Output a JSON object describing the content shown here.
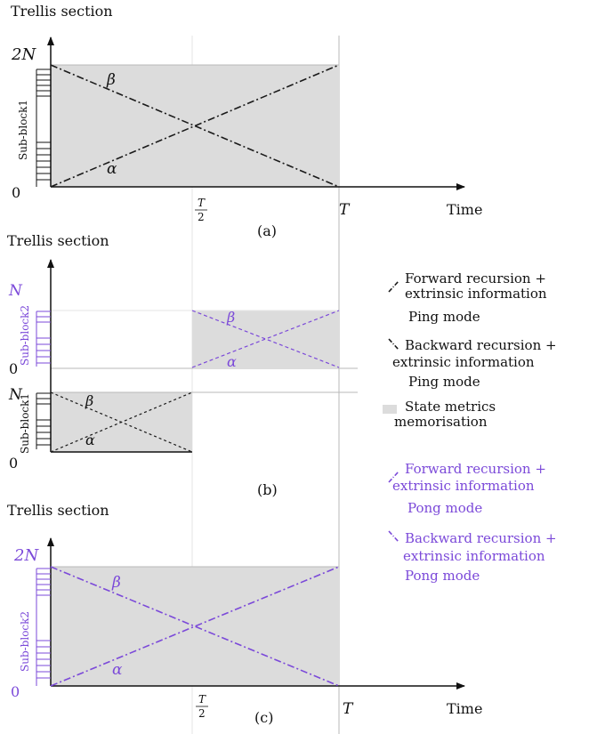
{
  "colors": {
    "ping": "#1a1a1a",
    "pong": "#7b49d9",
    "memorisation": "#dcdcdc",
    "axis": "#111111",
    "guide": "#b8b8b8"
  },
  "panels": {
    "a": {
      "ylabel": "Trellis section",
      "ymax_label": "2N",
      "origin_label": "0",
      "subblock_label": "Sub-block1",
      "beta": "β",
      "alpha": "α",
      "xtick_half_num": "T",
      "xtick_half_den": "2",
      "xtick_T": "T",
      "xlabel": "Time",
      "caption": "(a)"
    },
    "b": {
      "ylabel": "Trellis section",
      "top_N_label": "N",
      "top_origin_label": "0",
      "bottom_N_label": "N",
      "bottom_origin_label": "0",
      "subblock_top": "Sub-block2",
      "subblock_bottom": "Sub-block1",
      "beta_top": "β",
      "alpha_top": "α",
      "beta_bottom": "β",
      "alpha_bottom": "α",
      "caption": "(b)"
    },
    "c": {
      "ylabel": "Trellis section",
      "ymax_label": "2N",
      "origin_label": "0",
      "subblock_label": "Sub-block2",
      "beta": "β",
      "alpha": "α",
      "xtick_half_num": "T",
      "xtick_half_den": "2",
      "xtick_T": "T",
      "xlabel": "Time",
      "caption": "(c)"
    }
  },
  "legend": [
    {
      "line1": "Forward recursion +",
      "line2": "extrinsic information",
      "line3": "Ping mode"
    },
    {
      "line1": "Backward recursion +",
      "line2": "extrinsic information",
      "line3": "Ping mode"
    },
    {
      "line1": "State metrics",
      "line2": "memorisation"
    },
    {
      "line1": "Forward recursion +",
      "line2": "extrinsic information",
      "line3": "Pong mode"
    },
    {
      "line1": "Backward recursion +",
      "line2": "extrinsic information",
      "line3": "Pong mode"
    }
  ]
}
